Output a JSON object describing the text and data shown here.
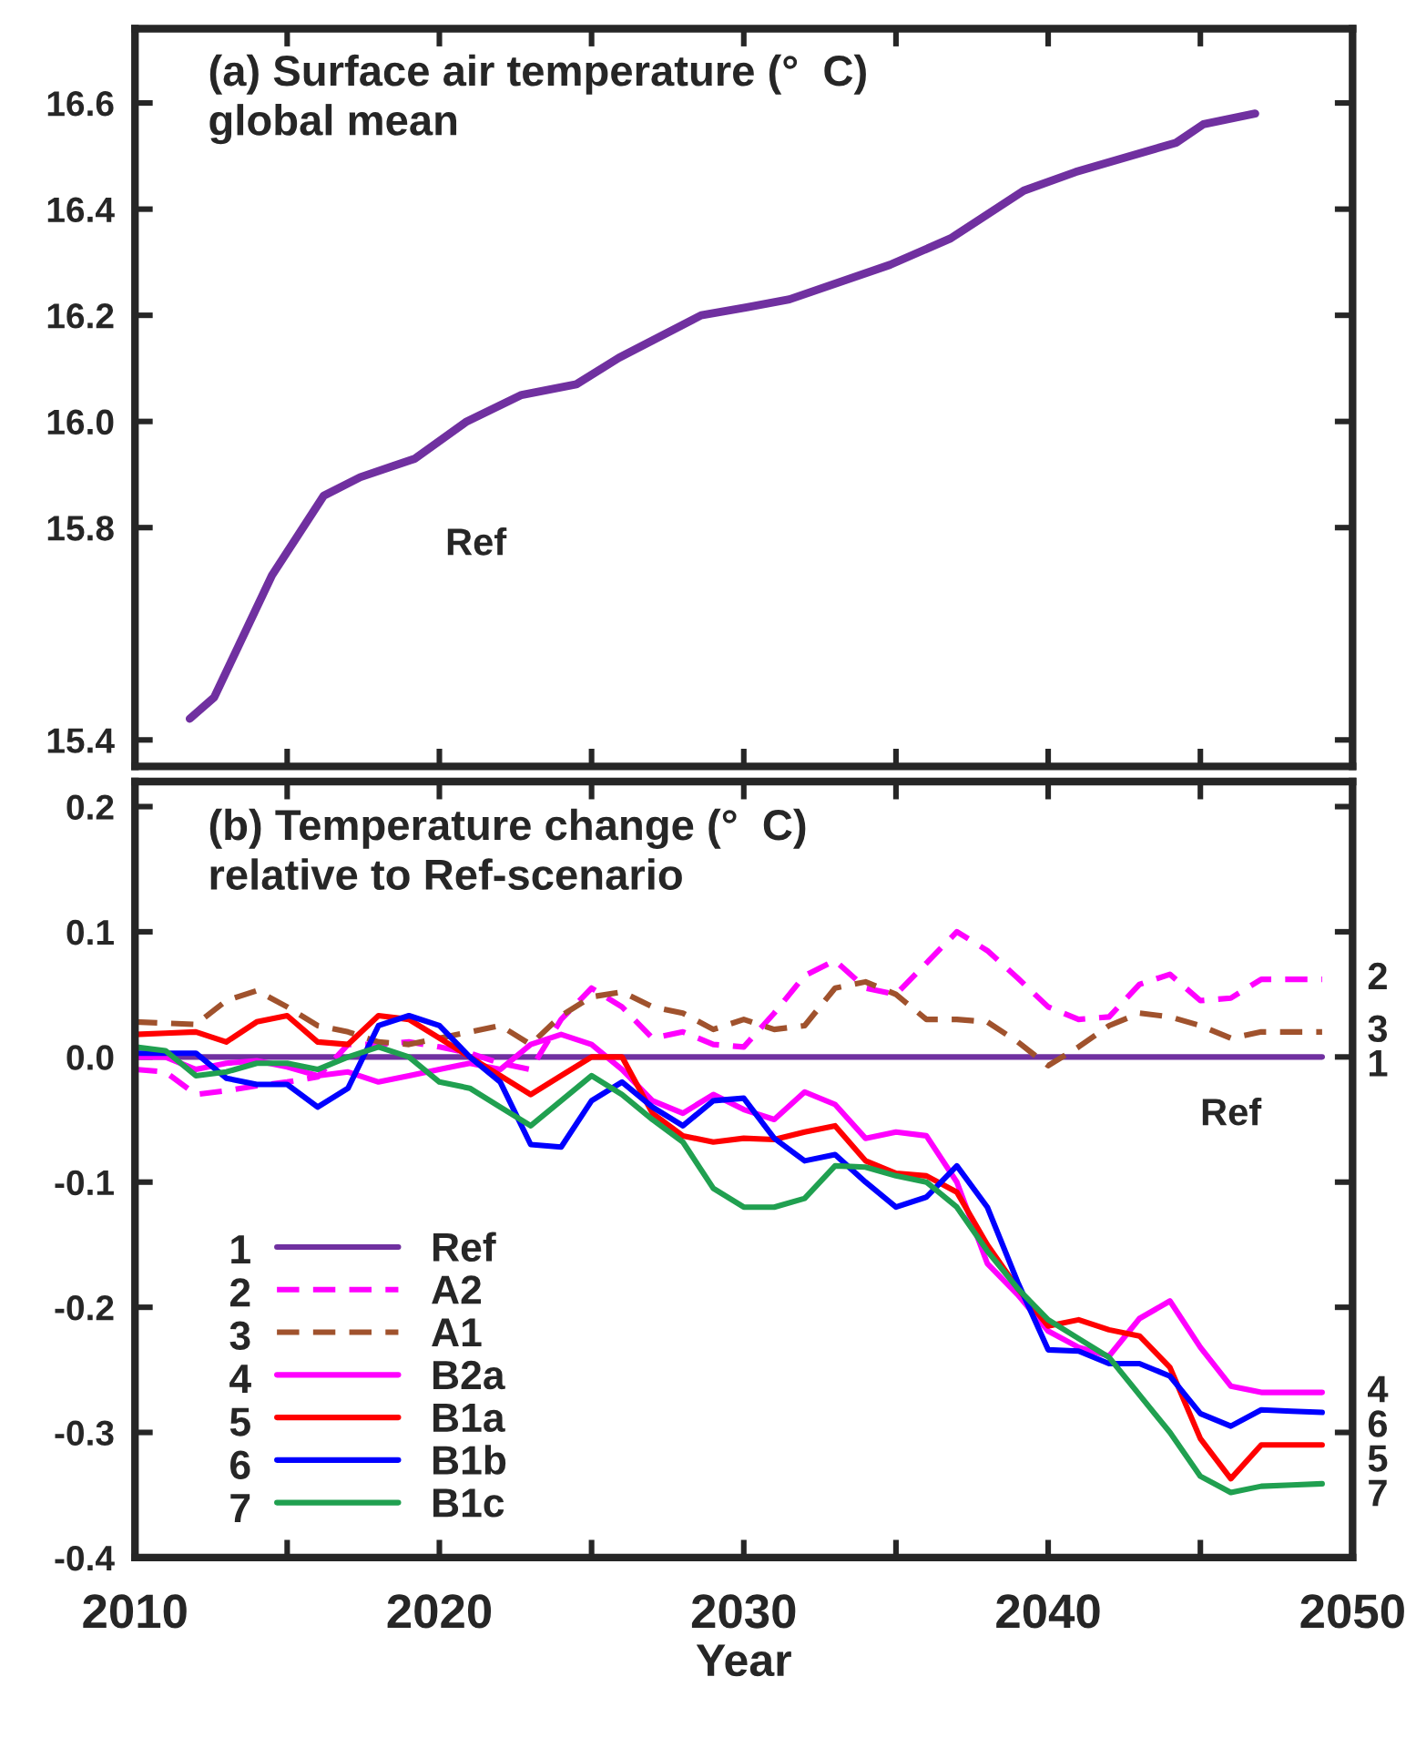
{
  "chart_data": [
    {
      "type": "line",
      "title": "(a) Surface air temperature (°  C)\nglobal mean",
      "x": [
        2011.8,
        2012.6,
        2014.5,
        2016.2,
        2017.4,
        2019.2,
        2020.9,
        2022.7,
        2024.5,
        2025.9,
        2028.6,
        2030.1,
        2031.5,
        2034.8,
        2036.8,
        2039.2,
        2040.9,
        2044.2,
        2045.1,
        2046.8
      ],
      "series": [
        {
          "color": "#7030a0",
          "values": [
            15.44,
            15.48,
            15.71,
            15.86,
            15.895,
            15.93,
            16.0,
            16.05,
            16.07,
            16.12,
            16.2,
            16.215,
            16.23,
            16.295,
            16.345,
            16.435,
            16.47,
            16.525,
            16.56,
            16.58
          ]
        }
      ],
      "annotations": [
        "Ref"
      ],
      "xlim": [
        2010,
        2050
      ],
      "xticks": [
        {
          "value": 2010,
          "label": null
        },
        {
          "value": 2015,
          "label": null
        },
        {
          "value": 2020,
          "label": null
        },
        {
          "value": 2025,
          "label": null
        },
        {
          "value": 2030,
          "label": null
        },
        {
          "value": 2035,
          "label": null
        },
        {
          "value": 2040,
          "label": null
        },
        {
          "value": 2045,
          "label": null
        },
        {
          "value": 2050,
          "label": null
        }
      ],
      "ylim": [
        15.35,
        16.74
      ],
      "yticks": [
        {
          "value": 15.4,
          "label": "15.4"
        },
        {
          "value": 15.8,
          "label": "15.8"
        },
        {
          "value": 16.0,
          "label": "16.0"
        },
        {
          "value": 16.2,
          "label": "16.2"
        },
        {
          "value": 16.4,
          "label": "16.4"
        },
        {
          "value": 16.6,
          "label": "16.6"
        }
      ],
      "tick_labels": "y",
      "grid": false,
      "marker": "none",
      "line_style": "solid"
    },
    {
      "type": "line",
      "title": "(b) Temperature change (°  C)\nrelative to Ref-scenario",
      "xlabel": "Year",
      "x": [
        2010,
        2011,
        2012,
        2013,
        2014,
        2015,
        2016,
        2017,
        2018,
        2019,
        2020,
        2021,
        2022,
        2023,
        2024,
        2025,
        2026,
        2027,
        2028,
        2029,
        2030,
        2031,
        2032,
        2033,
        2034,
        2035,
        2036,
        2037,
        2038,
        2039,
        2040,
        2041,
        2042,
        2043,
        2044,
        2045,
        2046,
        2047,
        2048,
        2049
      ],
      "series": [
        {
          "name": "Ref",
          "color": "#7030a0",
          "line_style": "solid",
          "values": [
            0,
            0,
            0,
            0,
            0,
            0,
            0,
            0,
            0,
            0,
            0,
            0,
            0,
            0,
            0,
            0,
            0,
            0,
            0,
            0,
            0,
            0,
            0,
            0,
            0,
            0,
            0,
            0,
            0,
            0,
            0,
            0,
            0,
            0,
            0,
            0,
            0,
            0,
            0,
            0
          ]
        },
        {
          "name": "A2",
          "color": "#ff00ff",
          "line_style": "dashed",
          "values": [
            -0.01,
            -0.012,
            -0.03,
            -0.027,
            -0.023,
            -0.02,
            -0.016,
            0.01,
            0.01,
            0.012,
            0.008,
            0.003,
            -0.005,
            -0.01,
            0.03,
            0.055,
            0.04,
            0.015,
            0.02,
            0.01,
            0.008,
            0.035,
            0.065,
            0.077,
            0.055,
            0.05,
            0.075,
            0.1,
            0.085,
            0.063,
            0.04,
            0.03,
            0.032,
            0.058,
            0.066,
            0.045,
            0.047,
            0.062,
            0.062,
            0.062
          ]
        },
        {
          "name": "A1",
          "color": "#a0522d",
          "line_style": "dashed",
          "values": [
            0.028,
            0.027,
            0.026,
            0.045,
            0.053,
            0.04,
            0.025,
            0.02,
            0.012,
            0.01,
            0.015,
            0.02,
            0.025,
            0.01,
            0.033,
            0.048,
            0.052,
            0.04,
            0.035,
            0.022,
            0.03,
            0.022,
            0.025,
            0.055,
            0.06,
            0.05,
            0.03,
            0.03,
            0.028,
            0.012,
            -0.007,
            0.008,
            0.025,
            0.035,
            0.032,
            0.025,
            0.015,
            0.02,
            0.02,
            0.02
          ]
        },
        {
          "name": "B2a",
          "color": "#ff00ff",
          "line_style": "solid",
          "values": [
            0.0,
            0.0,
            -0.01,
            -0.005,
            -0.003,
            -0.008,
            -0.015,
            -0.012,
            -0.02,
            -0.015,
            -0.01,
            -0.005,
            -0.01,
            0.01,
            0.018,
            0.01,
            -0.01,
            -0.035,
            -0.045,
            -0.03,
            -0.042,
            -0.05,
            -0.028,
            -0.038,
            -0.065,
            -0.06,
            -0.063,
            -0.1,
            -0.165,
            -0.19,
            -0.219,
            -0.232,
            -0.239,
            -0.209,
            -0.195,
            -0.232,
            -0.263,
            -0.268,
            -0.268,
            -0.268
          ]
        },
        {
          "name": "B1a",
          "color": "#ff0000",
          "line_style": "solid",
          "values": [
            0.018,
            0.019,
            0.02,
            0.012,
            0.028,
            0.033,
            0.012,
            0.01,
            0.033,
            0.03,
            0.015,
            0.0,
            -0.015,
            -0.03,
            -0.015,
            0.0,
            0.0,
            -0.045,
            -0.063,
            -0.068,
            -0.065,
            -0.066,
            -0.06,
            -0.055,
            -0.083,
            -0.093,
            -0.095,
            -0.108,
            -0.15,
            -0.185,
            -0.215,
            -0.21,
            -0.218,
            -0.223,
            -0.248,
            -0.305,
            -0.337,
            -0.31,
            -0.31,
            -0.31
          ]
        },
        {
          "name": "B1b",
          "color": "#0000ff",
          "line_style": "solid",
          "values": [
            0.003,
            0.003,
            0.003,
            -0.017,
            -0.022,
            -0.022,
            -0.04,
            -0.025,
            0.025,
            0.033,
            0.025,
            0.0,
            -0.02,
            -0.07,
            -0.072,
            -0.035,
            -0.02,
            -0.04,
            -0.055,
            -0.035,
            -0.033,
            -0.065,
            -0.083,
            -0.078,
            -0.1,
            -0.12,
            -0.112,
            -0.087,
            -0.12,
            -0.18,
            -0.234,
            -0.235,
            -0.245,
            -0.245,
            -0.255,
            -0.285,
            -0.295,
            -0.282,
            -0.283,
            -0.284
          ]
        },
        {
          "name": "B1c",
          "color": "#20a050",
          "line_style": "solid",
          "values": [
            0.008,
            0.005,
            -0.015,
            -0.012,
            -0.005,
            -0.005,
            -0.01,
            0.0,
            0.008,
            0.0,
            -0.02,
            -0.025,
            -0.04,
            -0.055,
            -0.035,
            -0.015,
            -0.03,
            -0.05,
            -0.068,
            -0.105,
            -0.12,
            -0.12,
            -0.113,
            -0.087,
            -0.088,
            -0.095,
            -0.1,
            -0.12,
            -0.155,
            -0.185,
            -0.21,
            -0.225,
            -0.24,
            -0.27,
            -0.3,
            -0.335,
            -0.348,
            -0.343,
            -0.342,
            -0.341
          ]
        }
      ],
      "annotations": [
        "1",
        "2",
        "3",
        "4",
        "5",
        "6",
        "7",
        "Ref"
      ],
      "xlim": [
        2010,
        2050
      ],
      "xticks": [
        2010,
        {
          "value": 2015,
          "label": null
        },
        2020,
        {
          "value": 2025,
          "label": null
        },
        2030,
        {
          "value": 2035,
          "label": null
        },
        2040,
        {
          "value": 2045,
          "label": null
        },
        2050
      ],
      "ylim": [
        -0.4,
        0.22
      ],
      "yticks": [
        {
          "value": -0.4,
          "label": "-0.4"
        },
        {
          "value": -0.3,
          "label": "-0.3"
        },
        {
          "value": -0.2,
          "label": "-0.2"
        },
        {
          "value": -0.1,
          "label": "-0.1"
        },
        {
          "value": 0.0,
          "label": "0.0"
        },
        0.1,
        0.2
      ],
      "legend": "bottom left",
      "grid": false,
      "marker": "none"
    }
  ]
}
